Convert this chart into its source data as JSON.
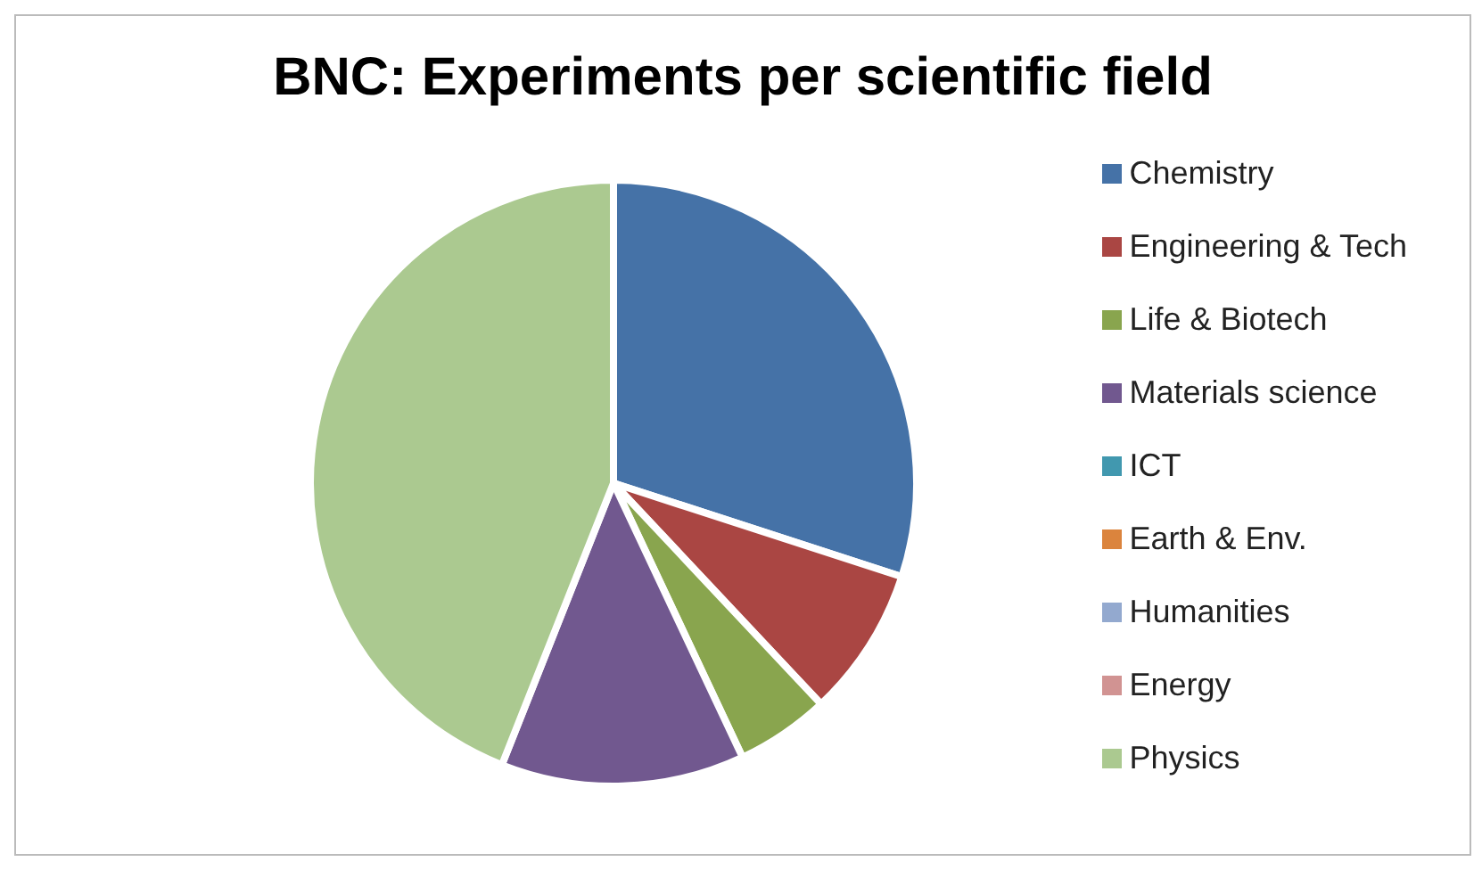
{
  "chart_data": {
    "type": "pie",
    "title": "BNC: Experiments per scientific field",
    "categories": [
      "Chemistry",
      "Engineering & Tech",
      "Life & Biotech",
      "Materials science",
      "ICT",
      "Earth & Env.",
      "Humanities",
      "Energy",
      "Physics"
    ],
    "values": [
      30,
      8,
      5,
      13,
      0,
      0,
      0,
      0,
      44
    ],
    "colors": [
      "#4572a7",
      "#aa4643",
      "#89a54e",
      "#71588f",
      "#4198af",
      "#db843d",
      "#93a9cf",
      "#d19392",
      "#abc990"
    ],
    "legend": "right"
  }
}
